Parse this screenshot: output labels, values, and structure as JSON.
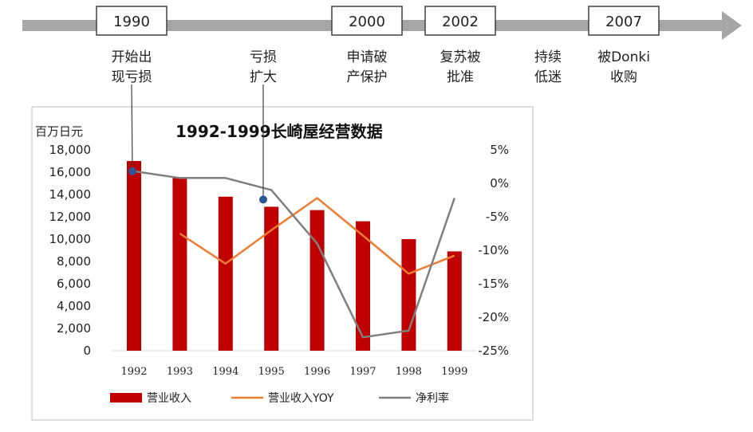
{
  "timeline": {
    "events": [
      {
        "year": "1990",
        "note": [
          "开始出",
          "现亏损"
        ]
      },
      {
        "year": "",
        "note": [
          "亏损",
          "扩大"
        ]
      },
      {
        "year": "2000",
        "note": [
          "申请破",
          "产保护"
        ]
      },
      {
        "year": "2002",
        "note": [
          "复苏被",
          "批准"
        ]
      },
      {
        "year": "",
        "note": [
          "持续",
          "低迷"
        ]
      },
      {
        "year": "2007",
        "note": [
          "被Donki",
          "收购"
        ]
      }
    ]
  },
  "chart_data": {
    "type": "bar",
    "title": "1992-1999长崎屋经营数据",
    "ylabel": "百万日元",
    "categories": [
      "1992",
      "1993",
      "1994",
      "1995",
      "1996",
      "1997",
      "1998",
      "1999"
    ],
    "ylim": [
      0,
      18000
    ],
    "y_ticks": [
      "18,000",
      "16,000",
      "14,000",
      "12,000",
      "10,000",
      "8,000",
      "6,000",
      "4,000",
      "2,000",
      "0"
    ],
    "y2lim": [
      -25,
      5
    ],
    "y2_ticks": [
      "5%",
      "0%",
      "-5%",
      "-10%",
      "-15%",
      "-20%",
      "-25%"
    ],
    "series": [
      {
        "name": "营业收入",
        "type": "bar",
        "axis": "left",
        "color": "#c00000",
        "values": [
          17000,
          15500,
          13800,
          12900,
          12600,
          11600,
          10000,
          8900
        ]
      },
      {
        "name": "营业收入YOY",
        "type": "line",
        "axis": "right",
        "color": "#ed7d31",
        "values": [
          null,
          -7.5,
          -12,
          -7,
          -2.2,
          -7.8,
          -13.5,
          -10.8
        ]
      },
      {
        "name": "净利率",
        "type": "line",
        "axis": "right",
        "color": "#7f7f7f",
        "values": [
          1.8,
          0.8,
          0.8,
          -1,
          -9,
          -23,
          -22,
          -2.2
        ]
      }
    ],
    "legend_position": "bottom",
    "grid": false
  }
}
